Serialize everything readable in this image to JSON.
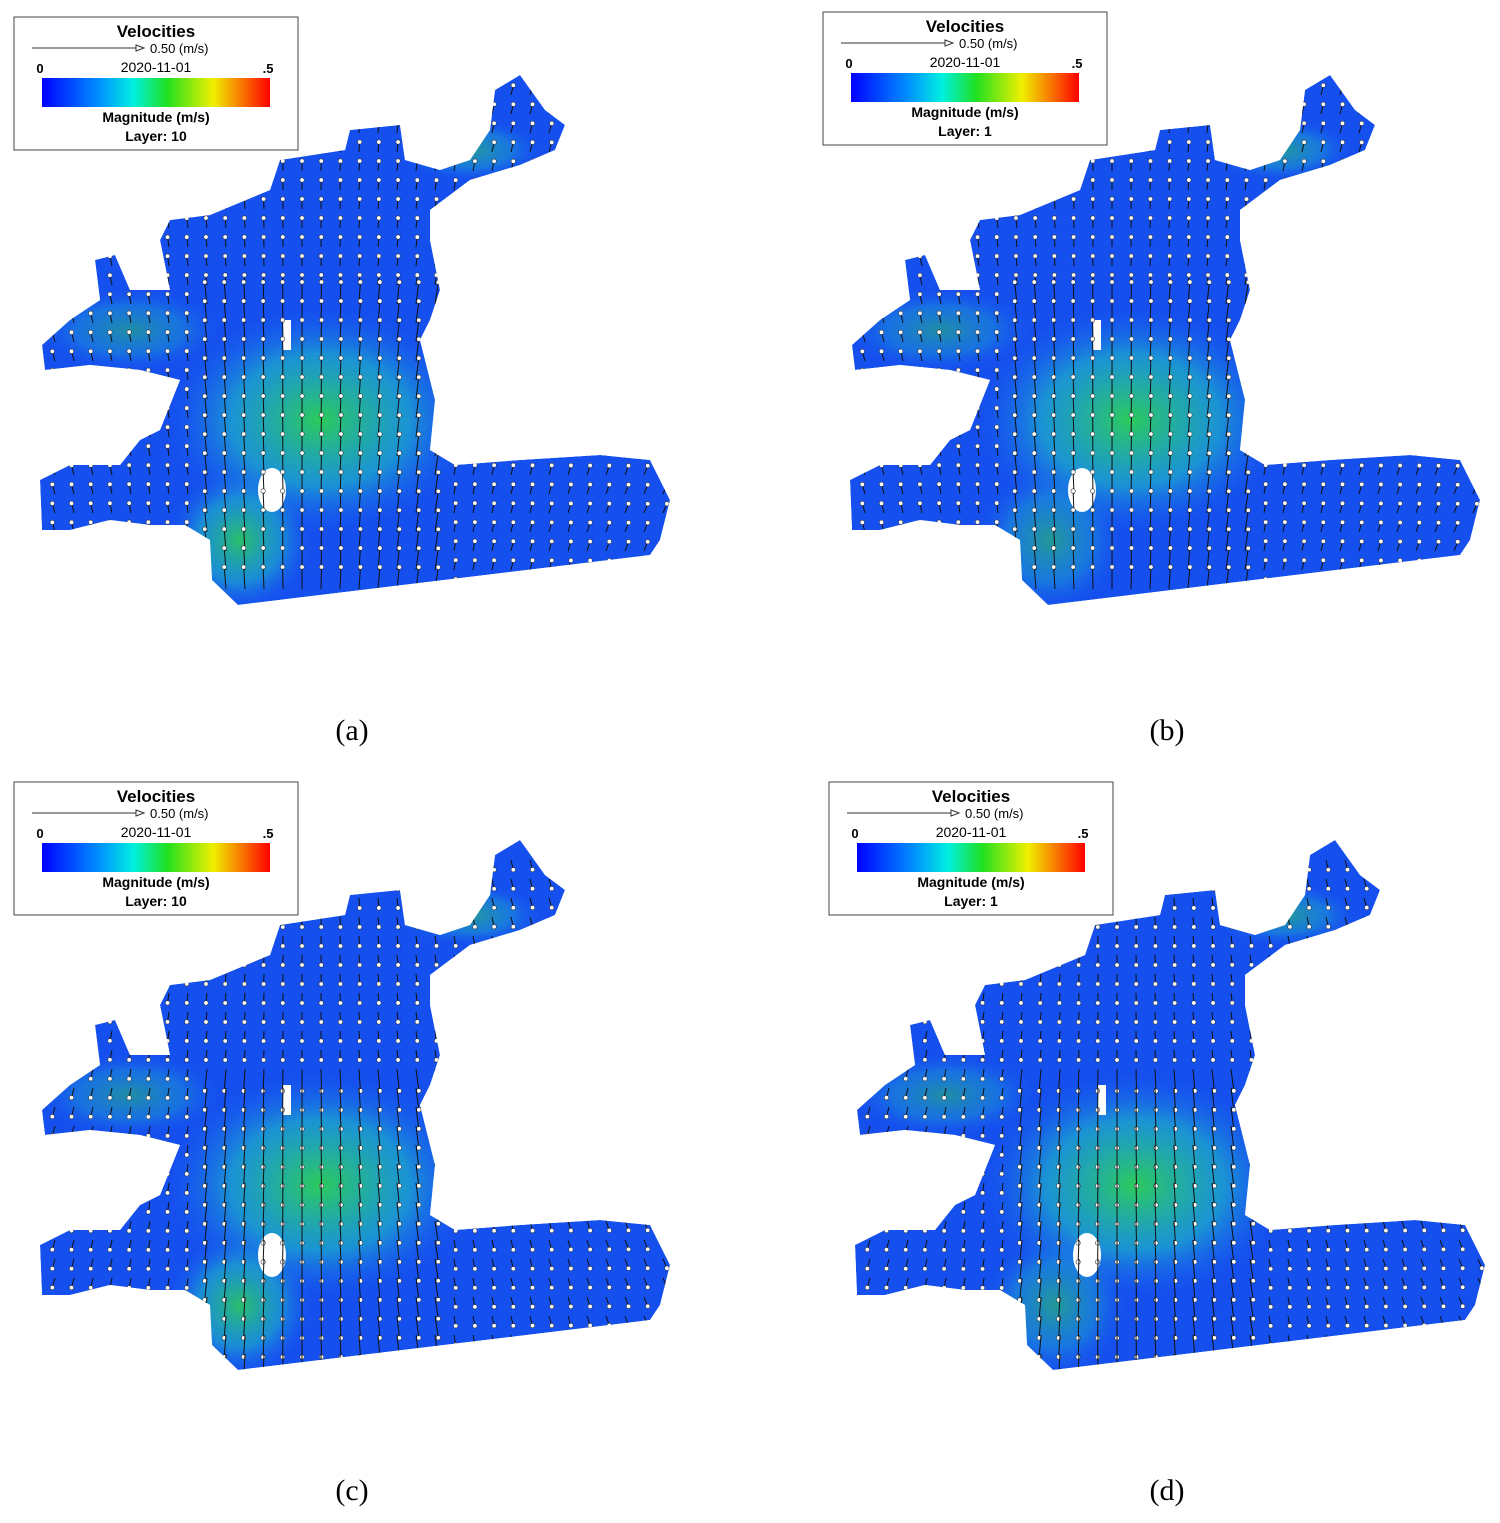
{
  "panels": [
    {
      "legend": {
        "title": "Velocities",
        "scale": "0.50 (m/s)",
        "min": "0",
        "date": "2020-11-01",
        "max": ".5",
        "quantity": "Magnitude (m/s)",
        "layer": "Layer: 10"
      },
      "caption": "(a)"
    },
    {
      "legend": {
        "title": "Velocities",
        "scale": "0.50 (m/s)",
        "min": "0",
        "date": "2020-11-01",
        "max": ".5",
        "quantity": "Magnitude (m/s)",
        "layer": "Layer: 1"
      },
      "caption": "(b)"
    },
    {
      "legend": {
        "title": "Velocities",
        "scale": "0.50 (m/s)",
        "min": "0",
        "date": "2020-11-01",
        "max": ".5",
        "quantity": "Magnitude (m/s)",
        "layer": "Layer: 10"
      },
      "caption": "(c)"
    },
    {
      "legend": {
        "title": "Velocities",
        "scale": "0.50 (m/s)",
        "min": "0",
        "date": "2020-11-01",
        "max": ".5",
        "quantity": "Magnitude (m/s)",
        "layer": "Layer: 1"
      },
      "caption": "(d)"
    }
  ]
}
